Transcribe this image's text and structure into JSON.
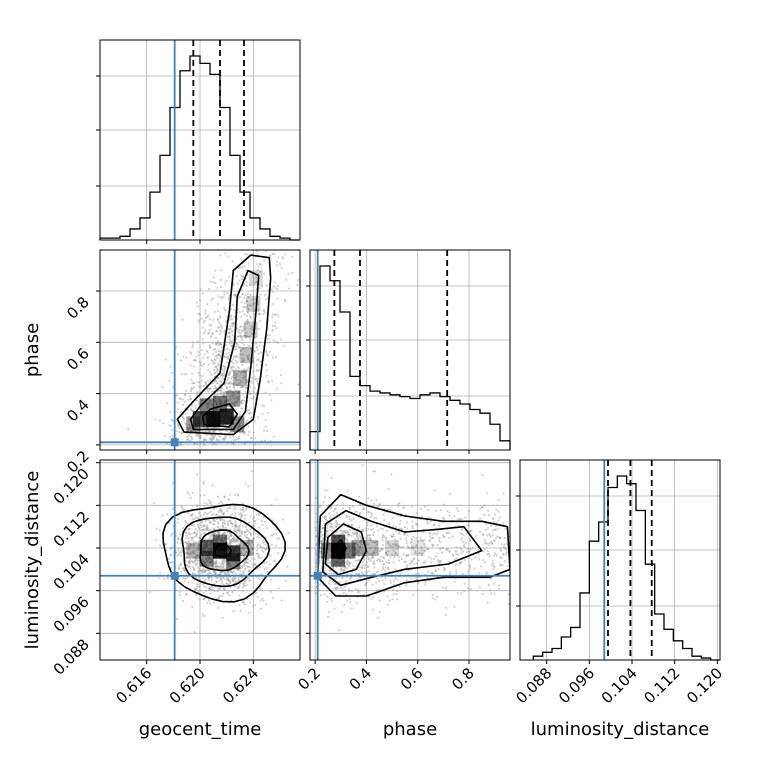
{
  "chart_data": {
    "type": "corner",
    "parameters": [
      "geocent_time",
      "phase",
      "luminosity_distance"
    ],
    "axis_labels": {
      "x": [
        "geocent_time",
        "phase",
        "luminosity_distance"
      ],
      "y": [
        "",
        "phase",
        "luminosity_distance"
      ]
    },
    "ranges": {
      "geocent_time": [
        0.6125,
        0.6275
      ],
      "phase": [
        0.18,
        0.96
      ],
      "luminosity_distance": [
        0.083,
        0.1205
      ]
    },
    "ticks": {
      "geocent_time": [
        0.616,
        0.62,
        0.624
      ],
      "phase": [
        0.2,
        0.4,
        0.6,
        0.8
      ],
      "luminosity_distance": [
        0.088,
        0.096,
        0.104,
        0.112,
        0.12
      ]
    },
    "tick_labels": {
      "geocent_time": [
        "0.616",
        "0.620",
        "0.624"
      ],
      "phase": [
        "0.2",
        "0.4",
        "0.6",
        "0.8"
      ],
      "luminosity_distance": [
        "0.088",
        "0.096",
        "0.104",
        "0.112",
        "0.120"
      ]
    },
    "truths": {
      "geocent_time": 0.6181,
      "phase": 0.21,
      "luminosity_distance": 0.0988
    },
    "quantiles": {
      "geocent_time": [
        0.6195,
        0.6215,
        0.6233
      ],
      "phase": [
        0.275,
        0.375,
        0.715
      ],
      "luminosity_distance": [
        0.0995,
        0.1037,
        0.1077
      ]
    },
    "histograms": {
      "geocent_time": {
        "edges_start": 0.6125,
        "bin_width": 0.00075,
        "counts": [
          1,
          1,
          2,
          6,
          12,
          26,
          46,
          72,
          92,
          100,
          96,
          90,
          72,
          46,
          26,
          12,
          6,
          2,
          1,
          0
        ]
      },
      "phase": {
        "edges_start": 0.18,
        "bin_width": 0.039,
        "counts": [
          10,
          100,
          92,
          75,
          40,
          35,
          32,
          31,
          30,
          29,
          28,
          30,
          31,
          29,
          27,
          25,
          22,
          20,
          14,
          5
        ]
      },
      "luminosity_distance": {
        "edges_start": 0.0855,
        "bin_width": 0.00175,
        "counts": [
          2,
          4,
          6,
          12,
          17,
          35,
          62,
          72,
          90,
          96,
          92,
          78,
          50,
          24,
          16,
          10,
          6,
          2,
          1,
          0
        ]
      }
    },
    "hist2d": {
      "phase_vs_geocent_time": {
        "x": "geocent_time",
        "y": "phase",
        "peak": [
          0.621,
          0.3
        ],
        "contours": "1,2,3-sigma"
      },
      "luminosity_distance_vs_geocent_time": {
        "x": "geocent_time",
        "y": "luminosity_distance",
        "peak": [
          0.6215,
          0.1035
        ],
        "contours": "1,2,3-sigma"
      },
      "luminosity_distance_vs_phase": {
        "x": "phase",
        "y": "luminosity_distance",
        "peak": [
          0.29,
          0.1035
        ],
        "contours": "1,2,3-sigma"
      }
    },
    "grid": true,
    "colors": {
      "truth": "#4682b4",
      "hist": "#000000",
      "scatter": "#9a9a9a",
      "grid": "#b0b0b0"
    }
  }
}
